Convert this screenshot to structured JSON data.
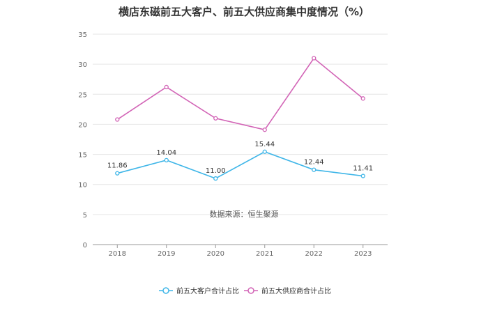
{
  "chart_data": {
    "type": "line",
    "title": "横店东磁前五大客户、前五大供应商集中度情况（%）",
    "x": [
      "2018",
      "2019",
      "2020",
      "2021",
      "2022",
      "2023"
    ],
    "ylim": [
      0,
      35
    ],
    "yticks": [
      0,
      5,
      10,
      15,
      20,
      25,
      30,
      35
    ],
    "grid": true,
    "legend_position": "bottom",
    "series": [
      {
        "name": "前五大客户合计占比",
        "color": "#3fb6e8",
        "values": [
          11.86,
          14.04,
          11.0,
          15.44,
          12.44,
          11.41
        ],
        "labels": [
          "11.86",
          "14.04",
          "11.00",
          "15.44",
          "12.44",
          "11.41"
        ]
      },
      {
        "name": "前五大供应商合计占比",
        "color": "#d264b6",
        "values": [
          20.8,
          26.2,
          21.0,
          19.1,
          31.0,
          24.3
        ]
      }
    ],
    "source_note": "数据来源：恒生聚源"
  }
}
